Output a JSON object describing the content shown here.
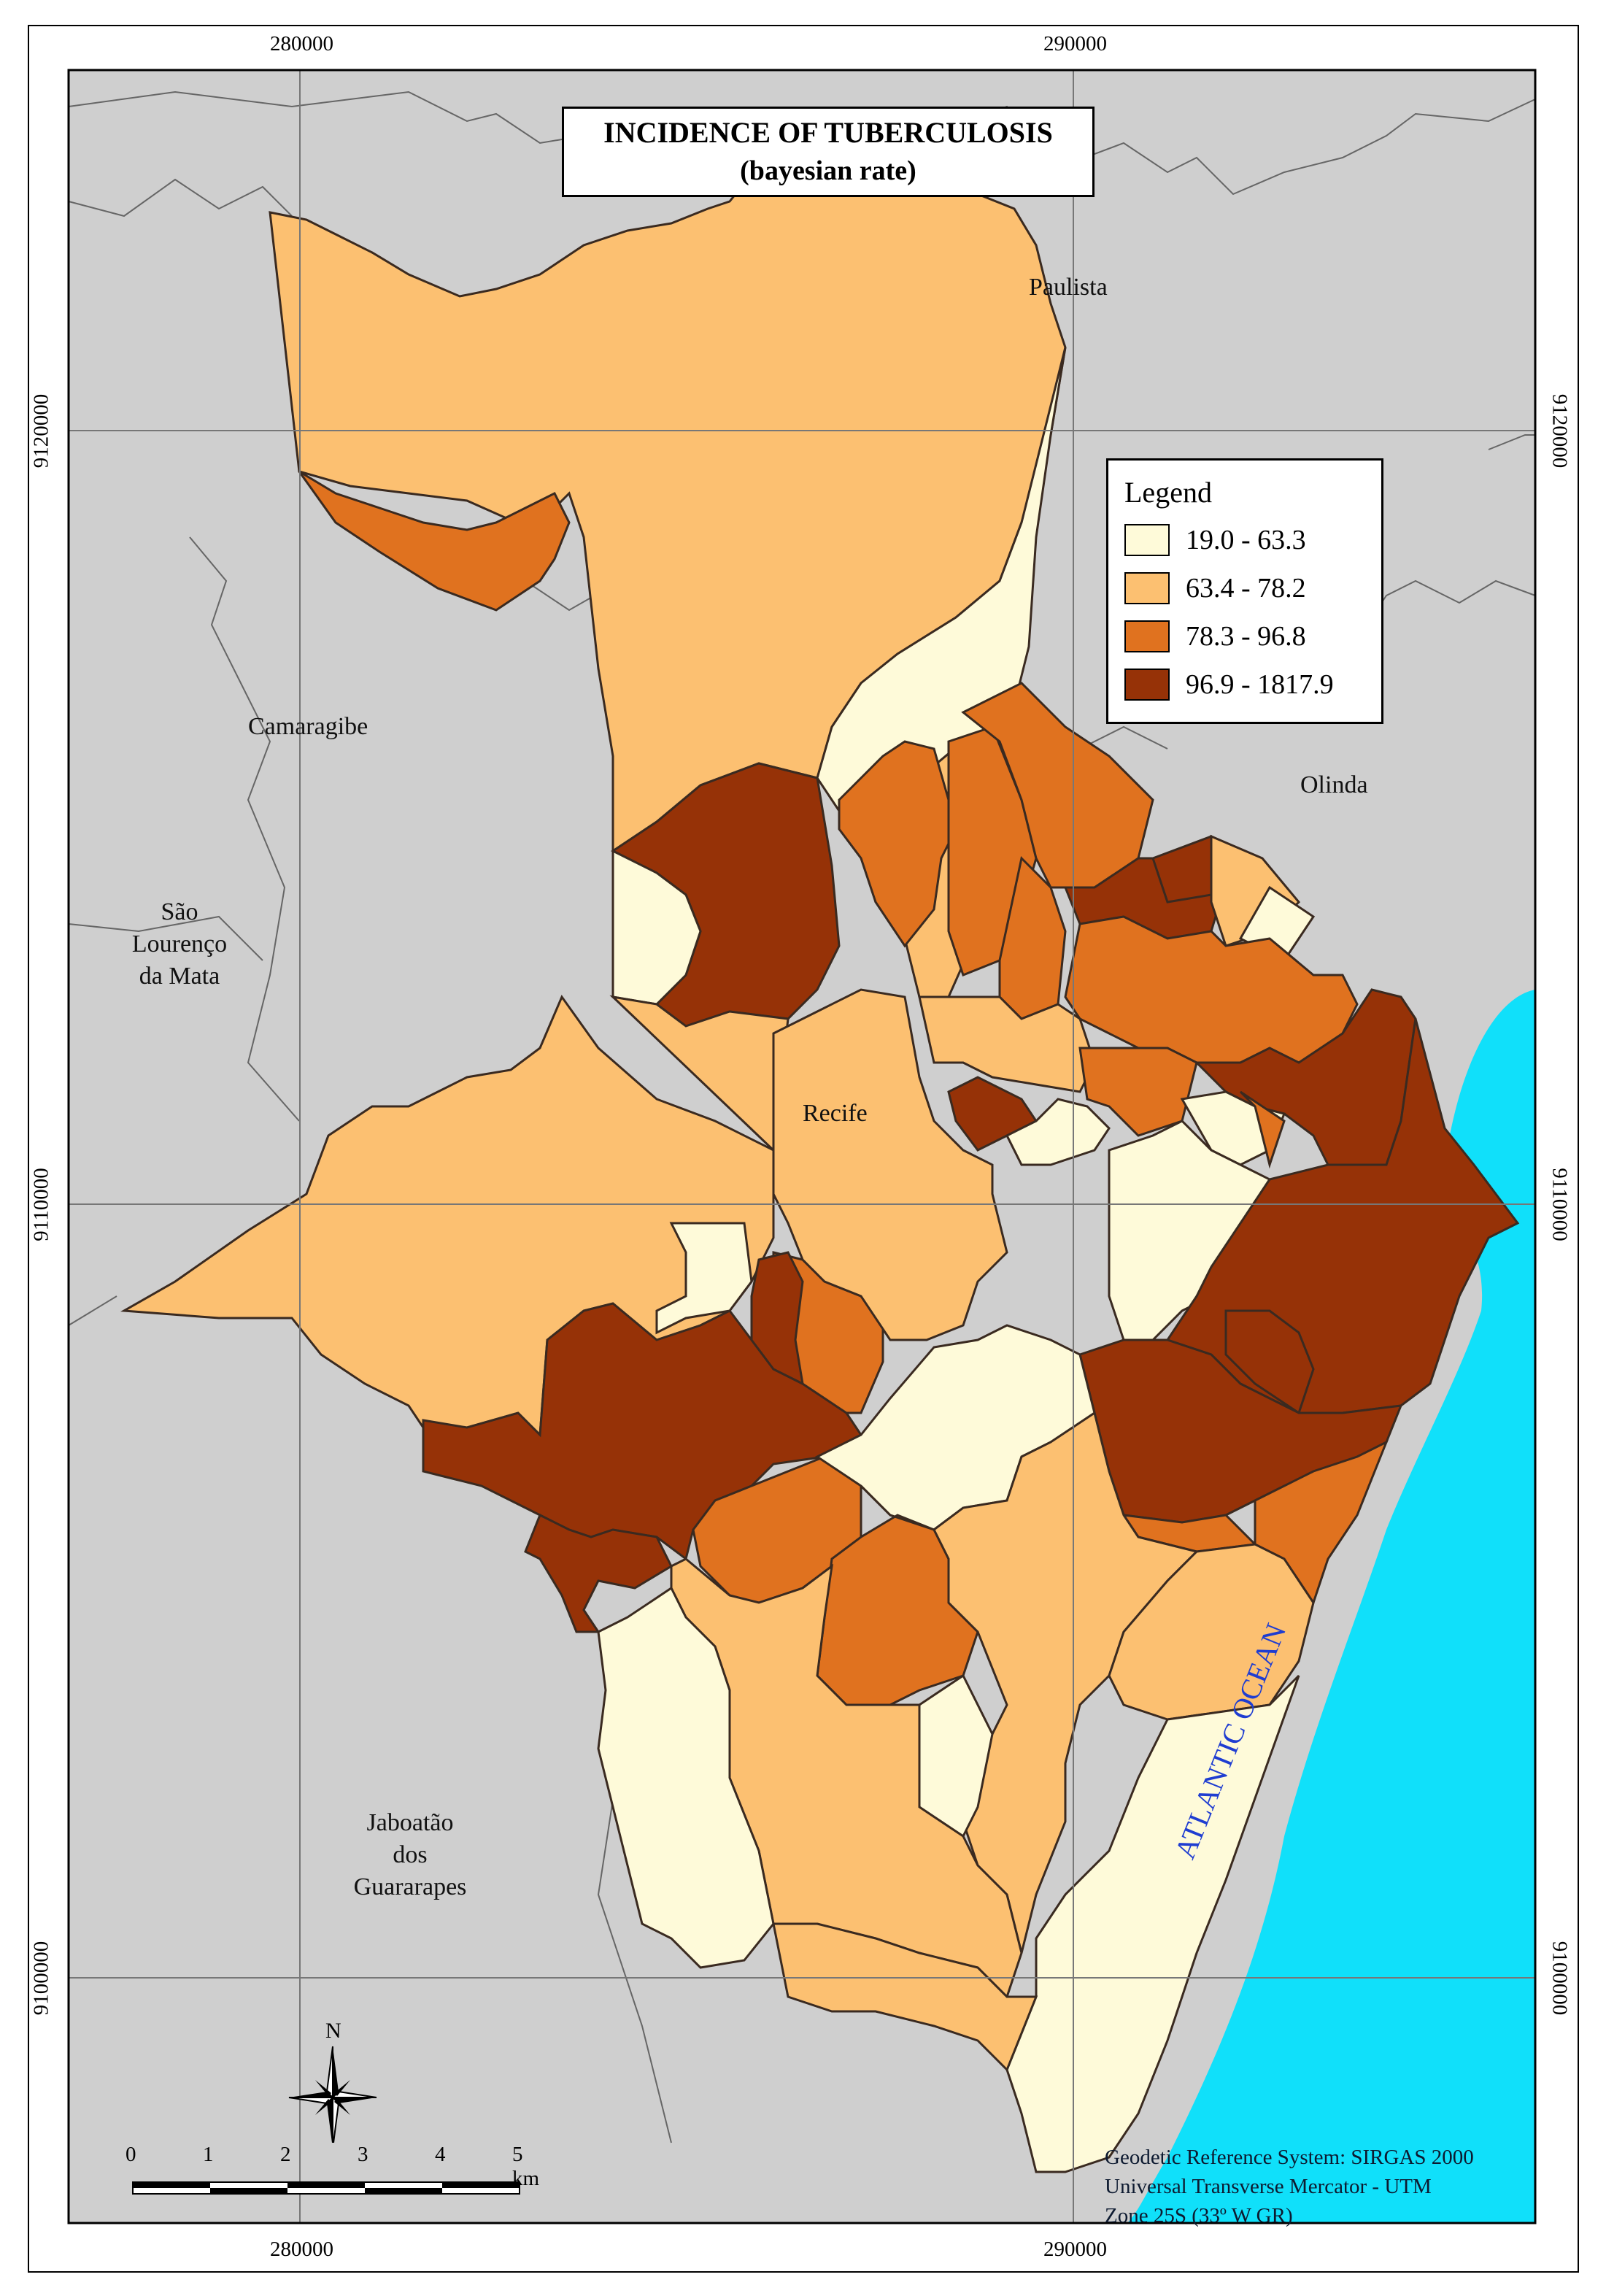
{
  "title": {
    "line1": "INCIDENCE OF TUBERCULOSIS",
    "line2": "(bayesian rate)"
  },
  "legend": {
    "title": "Legend",
    "classes": [
      {
        "label": "19.0 - 63.3",
        "color": "#fefad9"
      },
      {
        "label": "63.4 - 78.2",
        "color": "#fcc071"
      },
      {
        "label": "78.3 - 96.8",
        "color": "#e0721f"
      },
      {
        "label": "96.9 - 1817.9",
        "color": "#963207"
      }
    ]
  },
  "grid": {
    "x_top": [
      "280000",
      "290000"
    ],
    "x_bottom": [
      "280000",
      "290000"
    ],
    "y_left": [
      "9120000",
      "9110000",
      "9100000"
    ],
    "y_right": [
      "9120000",
      "9110000",
      "9100000"
    ]
  },
  "places": {
    "paulista": "Paulista",
    "camaragibe": "Camaragibe",
    "olinda": "Olinda",
    "sao_lourenco": [
      "São",
      "Lourenço",
      "da Mata"
    ],
    "recife": "Recife",
    "jaboatao": [
      "Jaboatão",
      "dos",
      "Guararapes"
    ],
    "ocean": "ATLANTIC OCEAN"
  },
  "north_arrow": {
    "label": "N"
  },
  "scale_bar": {
    "labels": [
      "0",
      "1",
      "2",
      "3",
      "4",
      "5 km"
    ]
  },
  "reference": [
    "Geodetic Reference System: SIRGAS 2000",
    "Universal Transverse Mercator - UTM",
    "Zone 25S (33º W GR)"
  ],
  "colors": {
    "background_land": "#cfcfcf",
    "ocean": "#10e0fa",
    "border": "#3a2a20",
    "grid": "#777777"
  }
}
